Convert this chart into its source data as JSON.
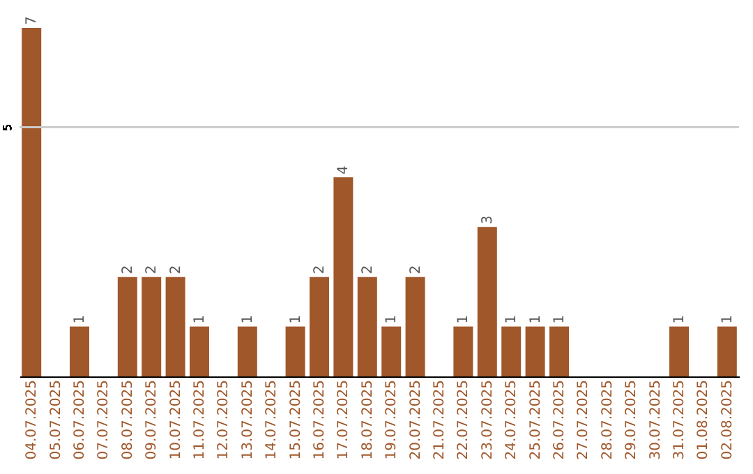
{
  "chart_data": {
    "type": "bar",
    "categories": [
      "04.07.2025",
      "05.07.2025",
      "06.07.2025",
      "07.07.2025",
      "08.07.2025",
      "09.07.2025",
      "10.07.2025",
      "11.07.2025",
      "12.07.2025",
      "13.07.2025",
      "14.07.2025",
      "15.07.2025",
      "16.07.2025",
      "17.07.2025",
      "18.07.2025",
      "19.07.2025",
      "20.07.2025",
      "21.07.2025",
      "22.07.2025",
      "23.07.2025",
      "24.07.2025",
      "25.07.2025",
      "26.07.2025",
      "27.07.2025",
      "28.07.2025",
      "29.07.2025",
      "30.07.2025",
      "31.07.2025",
      "01.08.2025",
      "02.08.2025"
    ],
    "values": [
      7,
      0,
      1,
      0,
      2,
      2,
      2,
      1,
      0,
      1,
      0,
      1,
      2,
      4,
      2,
      1,
      2,
      0,
      1,
      3,
      1,
      1,
      1,
      0,
      0,
      0,
      0,
      1,
      0,
      1
    ],
    "value_labels": [
      "7",
      null,
      "1",
      null,
      "2",
      "2",
      "2",
      "1",
      null,
      "1",
      null,
      "1",
      "2",
      "4",
      "2",
      "1",
      "2",
      null,
      "1",
      "3",
      "1",
      "1",
      "1",
      null,
      null,
      null,
      null,
      "1",
      null,
      "1"
    ],
    "color": "#a0572a",
    "ref_lines": [
      {
        "axis": "y",
        "value": 5,
        "label": "5",
        "color": "#cccccc"
      }
    ]
  }
}
